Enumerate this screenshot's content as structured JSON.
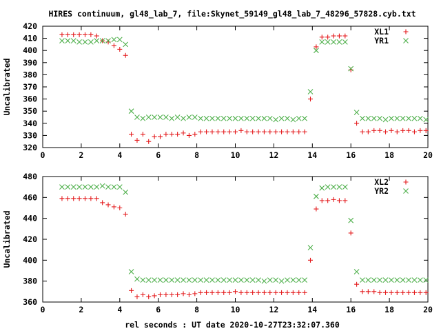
{
  "title": "HIRES continuum, gl48_lab_7, file:Skynet_59149_gl48_lab_7_48296_57828.cyb.txt",
  "shared_xlabel": "rel seconds : UT date 2020-10-27T23:32:07.360",
  "chart_data": [
    {
      "type": "scatter",
      "ylabel": "Uncalibrated",
      "xlim": [
        0,
        20
      ],
      "ylim": [
        320,
        420
      ],
      "xticks": [
        0,
        2,
        4,
        6,
        8,
        10,
        12,
        14,
        16,
        18,
        20
      ],
      "yticks": [
        320,
        330,
        340,
        350,
        360,
        370,
        380,
        390,
        400,
        410,
        420
      ],
      "grid": false,
      "legend_position": "top-right",
      "series": [
        {
          "name": "XL1",
          "marker": "plus",
          "color": "#e41a1c",
          "x": [
            1.0,
            1.3,
            1.6,
            1.9,
            2.2,
            2.5,
            2.8,
            3.1,
            3.4,
            3.7,
            4.0,
            4.3,
            4.6,
            4.9,
            5.2,
            5.5,
            5.8,
            6.1,
            6.4,
            6.7,
            7.0,
            7.3,
            7.6,
            7.9,
            8.2,
            8.5,
            8.8,
            9.1,
            9.4,
            9.7,
            10.0,
            10.3,
            10.6,
            10.9,
            11.2,
            11.5,
            11.8,
            12.1,
            12.4,
            12.7,
            13.0,
            13.3,
            13.6,
            13.9,
            14.2,
            14.5,
            14.8,
            15.1,
            15.4,
            15.7,
            16.0,
            16.3,
            16.6,
            16.9,
            17.2,
            17.5,
            17.8,
            18.1,
            18.4,
            18.7,
            19.0,
            19.3,
            19.6,
            19.9
          ],
          "y": [
            413,
            413,
            413,
            413,
            413,
            413,
            412,
            408,
            407,
            404,
            401,
            396,
            331,
            326,
            331,
            325,
            329,
            329,
            331,
            331,
            331,
            332,
            330,
            331,
            333,
            333,
            333,
            333,
            333,
            333,
            333,
            334,
            333,
            333,
            333,
            333,
            333,
            333,
            333,
            333,
            333,
            333,
            333,
            360,
            403,
            411,
            411,
            412,
            412,
            412,
            384,
            340,
            333,
            333,
            334,
            334,
            333,
            334,
            333,
            334,
            334,
            333,
            334,
            334
          ]
        },
        {
          "name": "YR1",
          "marker": "cross",
          "color": "#4daf4a",
          "x": [
            1.0,
            1.3,
            1.6,
            1.9,
            2.2,
            2.5,
            2.8,
            3.1,
            3.4,
            3.7,
            4.0,
            4.3,
            4.6,
            4.9,
            5.2,
            5.5,
            5.8,
            6.1,
            6.4,
            6.7,
            7.0,
            7.3,
            7.6,
            7.9,
            8.2,
            8.5,
            8.8,
            9.1,
            9.4,
            9.7,
            10.0,
            10.3,
            10.6,
            10.9,
            11.2,
            11.5,
            11.8,
            12.1,
            12.4,
            12.7,
            13.0,
            13.3,
            13.6,
            13.9,
            14.2,
            14.5,
            14.8,
            15.1,
            15.4,
            15.7,
            16.0,
            16.3,
            16.6,
            16.9,
            17.2,
            17.5,
            17.8,
            18.1,
            18.4,
            18.7,
            19.0,
            19.3,
            19.6,
            19.9
          ],
          "y": [
            408,
            408,
            408,
            407,
            407,
            407,
            408,
            408,
            408,
            409,
            409,
            405,
            350,
            345,
            344,
            345,
            345,
            345,
            345,
            344,
            345,
            344,
            345,
            345,
            344,
            344,
            344,
            344,
            344,
            344,
            344,
            344,
            344,
            344,
            344,
            344,
            344,
            343,
            344,
            344,
            343,
            344,
            344,
            366,
            400,
            407,
            407,
            407,
            407,
            407,
            385,
            349,
            344,
            344,
            344,
            344,
            343,
            344,
            344,
            344,
            344,
            344,
            344,
            343
          ]
        }
      ]
    },
    {
      "type": "scatter",
      "ylabel": "Uncalibrated",
      "xlim": [
        0,
        20
      ],
      "ylim": [
        360,
        480
      ],
      "xticks": [
        0,
        2,
        4,
        6,
        8,
        10,
        12,
        14,
        16,
        18,
        20
      ],
      "yticks": [
        360,
        380,
        400,
        420,
        440,
        460,
        480
      ],
      "grid": false,
      "legend_position": "top-right",
      "series": [
        {
          "name": "XL2",
          "marker": "plus",
          "color": "#e41a1c",
          "x": [
            1.0,
            1.3,
            1.6,
            1.9,
            2.2,
            2.5,
            2.8,
            3.1,
            3.4,
            3.7,
            4.0,
            4.3,
            4.6,
            4.9,
            5.2,
            5.5,
            5.8,
            6.1,
            6.4,
            6.7,
            7.0,
            7.3,
            7.6,
            7.9,
            8.2,
            8.5,
            8.8,
            9.1,
            9.4,
            9.7,
            10.0,
            10.3,
            10.6,
            10.9,
            11.2,
            11.5,
            11.8,
            12.1,
            12.4,
            12.7,
            13.0,
            13.3,
            13.6,
            13.9,
            14.2,
            14.5,
            14.8,
            15.1,
            15.4,
            15.7,
            16.0,
            16.3,
            16.6,
            16.9,
            17.2,
            17.5,
            17.8,
            18.1,
            18.4,
            18.7,
            19.0,
            19.3,
            19.6,
            19.9
          ],
          "y": [
            459,
            459,
            459,
            459,
            459,
            459,
            459,
            455,
            453,
            451,
            450,
            444,
            371,
            365,
            367,
            365,
            366,
            367,
            367,
            367,
            367,
            368,
            367,
            368,
            369,
            369,
            369,
            369,
            369,
            369,
            370,
            369,
            369,
            369,
            369,
            369,
            369,
            369,
            369,
            369,
            369,
            369,
            369,
            400,
            449,
            457,
            457,
            458,
            457,
            457,
            426,
            377,
            370,
            370,
            370,
            369,
            369,
            369,
            369,
            369,
            369,
            369,
            369,
            369
          ]
        },
        {
          "name": "YR2",
          "marker": "cross",
          "color": "#4daf4a",
          "x": [
            1.0,
            1.3,
            1.6,
            1.9,
            2.2,
            2.5,
            2.8,
            3.1,
            3.4,
            3.7,
            4.0,
            4.3,
            4.6,
            4.9,
            5.2,
            5.5,
            5.8,
            6.1,
            6.4,
            6.7,
            7.0,
            7.3,
            7.6,
            7.9,
            8.2,
            8.5,
            8.8,
            9.1,
            9.4,
            9.7,
            10.0,
            10.3,
            10.6,
            10.9,
            11.2,
            11.5,
            11.8,
            12.1,
            12.4,
            12.7,
            13.0,
            13.3,
            13.6,
            13.9,
            14.2,
            14.5,
            14.8,
            15.1,
            15.4,
            15.7,
            16.0,
            16.3,
            16.6,
            16.9,
            17.2,
            17.5,
            17.8,
            18.1,
            18.4,
            18.7,
            19.0,
            19.3,
            19.6,
            19.9
          ],
          "y": [
            470,
            470,
            470,
            470,
            470,
            470,
            470,
            471,
            470,
            470,
            470,
            465,
            389,
            382,
            381,
            381,
            381,
            381,
            381,
            381,
            381,
            381,
            381,
            381,
            381,
            381,
            381,
            381,
            381,
            381,
            381,
            381,
            381,
            381,
            381,
            380,
            381,
            381,
            380,
            381,
            381,
            381,
            381,
            412,
            461,
            469,
            470,
            470,
            470,
            470,
            438,
            389,
            381,
            381,
            381,
            381,
            381,
            381,
            381,
            381,
            381,
            381,
            381,
            381
          ]
        }
      ]
    }
  ]
}
